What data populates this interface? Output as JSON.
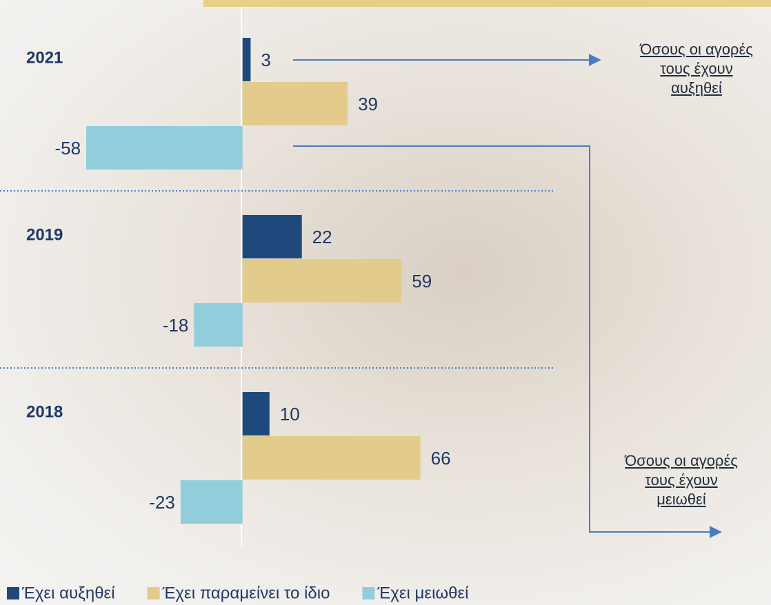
{
  "chart_data": {
    "type": "barh",
    "categories": [
      "2021",
      "2019",
      "2018"
    ],
    "series": [
      {
        "name": "Έχει αυξηθεί",
        "color": "#1f497d",
        "values": [
          3,
          22,
          10
        ]
      },
      {
        "name": "Έχει παραμείνει το ίδιο",
        "color": "#e3cc8b",
        "values": [
          39,
          59,
          66
        ]
      },
      {
        "name": "Έχει μειωθεί",
        "color": "#92cddc",
        "values": [
          -58,
          -18,
          -23
        ]
      }
    ],
    "xlim": [
      -90,
      116
    ],
    "legend": "bottom",
    "annotations": [
      [
        "Όσους οι αγορές",
        "τους έχουν",
        "αυξηθεί"
      ],
      [
        "Όσους οι αγορές",
        "τους έχουν",
        "μειωθεί"
      ]
    ]
  }
}
